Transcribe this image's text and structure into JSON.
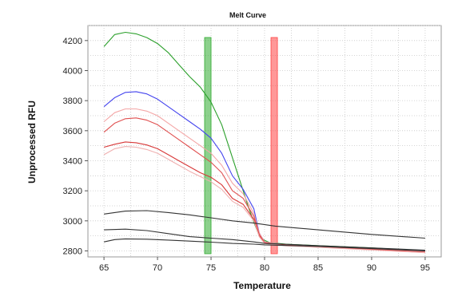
{
  "chart_data": {
    "type": "line",
    "title": "Melt Curve",
    "xlabel": "Temperature",
    "ylabel": "Unprocessed RFU",
    "xlim": [
      63.5,
      96.5
    ],
    "ylim": [
      2760,
      4300
    ],
    "x_ticks": [
      65,
      70,
      75,
      80,
      85,
      90,
      95
    ],
    "y_ticks": [
      2800,
      3000,
      3200,
      3400,
      3600,
      3800,
      4000,
      4200
    ],
    "grid": true,
    "legend": "none",
    "bars": [
      {
        "color": "#2eaa2e",
        "x_range": [
          74.4,
          75.0
        ]
      },
      {
        "color": "#ff4444",
        "x_range": [
          80.6,
          81.2
        ]
      }
    ],
    "series": [
      {
        "color": "#2ca02c",
        "x": [
          65,
          66,
          67,
          68,
          69,
          70,
          71,
          72,
          73,
          74,
          75,
          76,
          77,
          78,
          78.5,
          79,
          79.5,
          80,
          80.5,
          82,
          85,
          90,
          95
        ],
        "y": [
          4160,
          4240,
          4255,
          4245,
          4220,
          4180,
          4120,
          4040,
          3960,
          3890,
          3790,
          3640,
          3420,
          3200,
          3090,
          2990,
          2900,
          2870,
          2855,
          2845,
          2835,
          2820,
          2800
        ]
      },
      {
        "color": "#4444ee",
        "x": [
          65,
          66,
          67,
          68,
          69,
          70,
          71,
          72,
          73,
          74,
          75,
          76,
          77,
          78,
          79,
          79.5,
          80,
          82,
          85,
          90,
          95
        ],
        "y": [
          3760,
          3820,
          3855,
          3860,
          3845,
          3810,
          3760,
          3710,
          3660,
          3610,
          3550,
          3450,
          3300,
          3210,
          3080,
          2920,
          2860,
          2840,
          2830,
          2815,
          2800
        ]
      },
      {
        "color": "#f4a6a6",
        "x": [
          65,
          66,
          67,
          68,
          69,
          70,
          71,
          72,
          73,
          74,
          75,
          76,
          77,
          78,
          79,
          79.5,
          80,
          82,
          85,
          90,
          95
        ],
        "y": [
          3660,
          3720,
          3745,
          3745,
          3730,
          3700,
          3650,
          3600,
          3550,
          3500,
          3450,
          3370,
          3250,
          3180,
          3050,
          2920,
          2860,
          2840,
          2830,
          2812,
          2795
        ]
      },
      {
        "color": "#e05050",
        "x": [
          65,
          66,
          67,
          68,
          69,
          70,
          71,
          72,
          73,
          74,
          75,
          76,
          77,
          78,
          79,
          79.5,
          80,
          82,
          85,
          90,
          95
        ],
        "y": [
          3590,
          3650,
          3680,
          3685,
          3670,
          3640,
          3590,
          3540,
          3490,
          3440,
          3390,
          3320,
          3200,
          3150,
          3030,
          2910,
          2855,
          2838,
          2828,
          2810,
          2792
        ]
      },
      {
        "color": "#d83838",
        "x": [
          65,
          66,
          67,
          68,
          69,
          70,
          71,
          72,
          73,
          74,
          75,
          76,
          77,
          78,
          79,
          79.5,
          80,
          82,
          85,
          90,
          95
        ],
        "y": [
          3490,
          3510,
          3525,
          3520,
          3505,
          3480,
          3440,
          3400,
          3360,
          3320,
          3290,
          3240,
          3150,
          3110,
          3010,
          2900,
          2852,
          2836,
          2826,
          2808,
          2790
        ]
      },
      {
        "color": "#f0b0b0",
        "x": [
          65,
          66,
          67,
          68,
          69,
          70,
          71,
          72,
          73,
          74,
          75,
          76,
          77,
          78,
          79,
          79.5,
          80,
          82,
          85,
          90,
          95
        ],
        "y": [
          3440,
          3480,
          3495,
          3490,
          3475,
          3450,
          3410,
          3370,
          3330,
          3295,
          3260,
          3210,
          3130,
          3090,
          3000,
          2895,
          2850,
          2834,
          2824,
          2806,
          2788
        ]
      },
      {
        "color": "#333333",
        "x": [
          65,
          67,
          69,
          71,
          73,
          75,
          77,
          79,
          81,
          85,
          90,
          95
        ],
        "y": [
          3045,
          3065,
          3068,
          3055,
          3040,
          3020,
          3000,
          2985,
          2965,
          2940,
          2910,
          2885
        ]
      },
      {
        "color": "#333333",
        "x": [
          65,
          67,
          69,
          71,
          73,
          75,
          77,
          79,
          80,
          85,
          90,
          95
        ],
        "y": [
          2940,
          2945,
          2935,
          2915,
          2895,
          2885,
          2875,
          2860,
          2850,
          2835,
          2820,
          2805
        ]
      },
      {
        "color": "#333333",
        "x": [
          65,
          66,
          67,
          69,
          71,
          73,
          75,
          77,
          79,
          80,
          85,
          90,
          95
        ],
        "y": [
          2860,
          2875,
          2880,
          2878,
          2872,
          2865,
          2858,
          2850,
          2845,
          2840,
          2830,
          2815,
          2800
        ]
      }
    ]
  }
}
